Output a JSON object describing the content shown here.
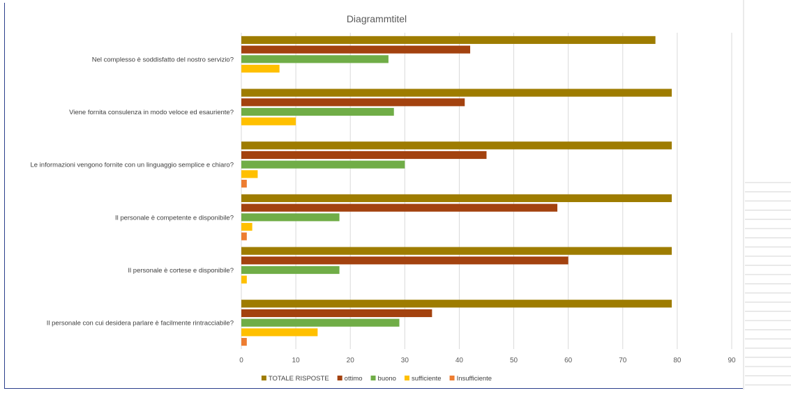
{
  "chart_data": {
    "type": "bar",
    "orientation": "horizontal",
    "title": "Diagrammtitel",
    "xlabel": "",
    "ylabel": "",
    "xlim": [
      0,
      90
    ],
    "ticks": [
      0,
      10,
      20,
      30,
      40,
      50,
      60,
      70,
      80,
      90
    ],
    "grid": true,
    "legend": "bottom",
    "categories": [
      "Nel complesso è soddisfatto del nostro servizio?",
      "Viene fornita consulenza in modo veloce ed esauriente?",
      "Le informazioni vengono fornite con un linguaggio semplice e chiaro?",
      "Il personale è competente e disponibile?",
      "Il personale è cortese e disponibile?",
      "Il personale con cui desidera parlare è facilmente rintracciabile?"
    ],
    "series": [
      {
        "name": "TOTALE RISPOSTE",
        "color": "#9e7c00",
        "values": [
          76,
          79,
          79,
          79,
          79,
          79
        ]
      },
      {
        "name": "ottimo",
        "color": "#a3420f",
        "values": [
          42,
          41,
          45,
          58,
          60,
          35
        ]
      },
      {
        "name": "buono",
        "color": "#70ad47",
        "values": [
          27,
          28,
          30,
          18,
          18,
          29
        ]
      },
      {
        "name": "sufficiente",
        "color": "#ffc000",
        "values": [
          7,
          10,
          3,
          2,
          1,
          14
        ]
      },
      {
        "name": "Insufficiente",
        "color": "#ed7d31",
        "values": [
          0,
          0,
          1,
          1,
          0,
          1
        ]
      }
    ]
  }
}
